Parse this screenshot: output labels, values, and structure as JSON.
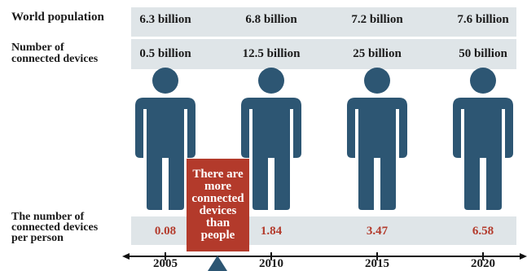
{
  "rows": {
    "population_label": "World population",
    "devices_label_line1": "Number of",
    "devices_label_line2": "connected devices",
    "per_person_line1": "The number of",
    "per_person_line2": "connected devices",
    "per_person_line3": "per person"
  },
  "columns": [
    {
      "year": "2005",
      "population": "6.3 billion",
      "devices": "0.5 billion",
      "per_person": "0.08"
    },
    {
      "year": "2010",
      "population": "6.8 billion",
      "devices": "12.5 billion",
      "per_person": "1.84"
    },
    {
      "year": "2015",
      "population": "7.2 billion",
      "devices": "25 billion",
      "per_person": "3.47"
    },
    {
      "year": "2020",
      "population": "7.6 billion",
      "devices": "50 billion",
      "per_person": "6.58"
    }
  ],
  "callout": {
    "line1": "There are",
    "line2": "more",
    "line3": "connected",
    "line4": "devices",
    "line5": "than",
    "line6": "people"
  },
  "colors": {
    "band": "#dfe5e8",
    "person": "#2d5673",
    "accent": "#b33a2b",
    "text": "#1a1a1a"
  },
  "icons": {
    "person": "person-icon",
    "marker": "triangle-marker-icon"
  }
}
